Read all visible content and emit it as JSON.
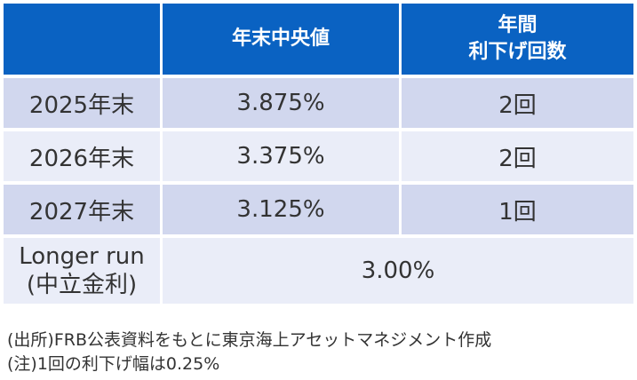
{
  "table": {
    "header": [
      "",
      "年末中央値",
      "年間\n利下げ回数"
    ],
    "header_lines": {
      "col2_line1": "年間",
      "col2_line2": "利下げ回数"
    },
    "rows": [
      {
        "label": "2025年末",
        "median": "3.875%",
        "cuts": "2回"
      },
      {
        "label": "2026年末",
        "median": "3.375%",
        "cuts": "2回"
      },
      {
        "label": "2027年末",
        "median": "3.125%",
        "cuts": "1回"
      }
    ],
    "longer_run": {
      "label_line1": "Longer run",
      "label_line2": "(中立金利)",
      "value": "3.00%"
    }
  },
  "notes": {
    "source": "(出所)FRB公表資料をもとに東京海上アセットマネジメント作成",
    "note": "(注)1回の利下げ幅は0.25%"
  },
  "colors": {
    "header_bg": "#0a62c2",
    "row_shade": "#d1d7ee",
    "row_light": "#eaedf8"
  }
}
